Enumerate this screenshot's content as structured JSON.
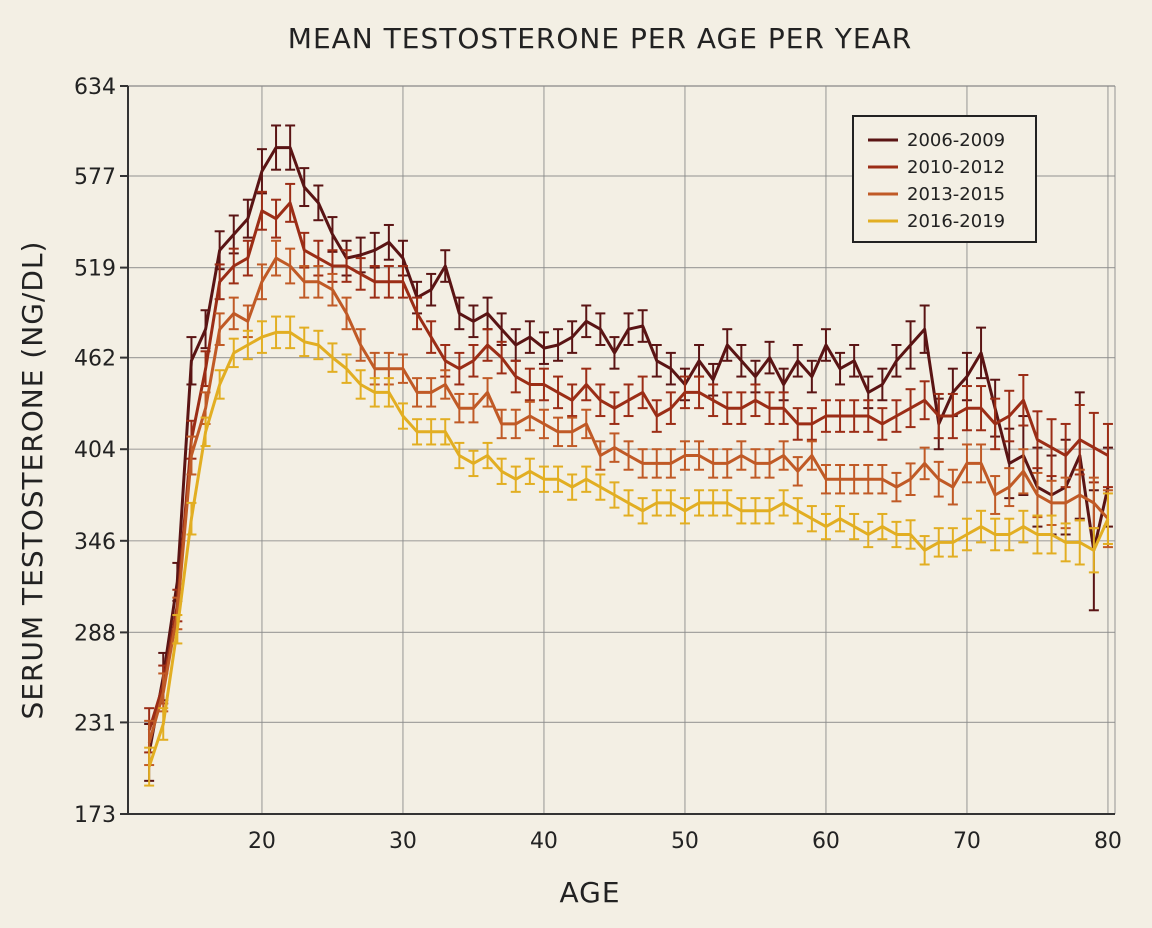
{
  "chart_data": {
    "type": "line",
    "title": "MEAN TESTOSTERONE PER AGE PER YEAR",
    "xlabel": "AGE",
    "ylabel": "SERUM TESTOSTERONE (NG/DL)",
    "xlim": [
      10.5,
      80.5
    ],
    "ylim": [
      173,
      634
    ],
    "x_ticks": [
      20,
      30,
      40,
      50,
      60,
      70,
      80
    ],
    "y_ticks": [
      173,
      231,
      288,
      346,
      404,
      462,
      519,
      577,
      634
    ],
    "grid": true,
    "legend": "top-right",
    "x": [
      12,
      13,
      14,
      15,
      16,
      17,
      18,
      19,
      20,
      21,
      22,
      23,
      24,
      25,
      26,
      27,
      28,
      29,
      30,
      31,
      32,
      33,
      34,
      35,
      36,
      37,
      38,
      39,
      40,
      41,
      42,
      43,
      44,
      45,
      46,
      47,
      48,
      49,
      50,
      51,
      52,
      53,
      54,
      55,
      56,
      57,
      58,
      59,
      60,
      61,
      62,
      63,
      64,
      65,
      66,
      67,
      68,
      69,
      70,
      71,
      72,
      73,
      74,
      75,
      76,
      77,
      78,
      79,
      80
    ],
    "series": [
      {
        "name": "2006-2009",
        "color": "#5a1414",
        "values": [
          212,
          260,
          320,
          460,
          480,
          530,
          540,
          550,
          580,
          595,
          595,
          570,
          560,
          540,
          525,
          527,
          530,
          535,
          525,
          500,
          505,
          520,
          490,
          485,
          490,
          480,
          470,
          475,
          468,
          470,
          475,
          485,
          480,
          465,
          480,
          482,
          460,
          455,
          445,
          460,
          448,
          470,
          460,
          450,
          462,
          445,
          460,
          450,
          470,
          455,
          460,
          440,
          445,
          460,
          470,
          480,
          420,
          440,
          450,
          465,
          430,
          395,
          400,
          380,
          375,
          380,
          400,
          340,
          380
        ],
        "errors": [
          18,
          15,
          12,
          15,
          12,
          12,
          12,
          12,
          14,
          14,
          14,
          12,
          11,
          11,
          11,
          11,
          11,
          11,
          11,
          10,
          10,
          10,
          10,
          10,
          10,
          10,
          10,
          10,
          10,
          10,
          10,
          10,
          10,
          10,
          10,
          10,
          10,
          10,
          10,
          10,
          10,
          10,
          10,
          10,
          10,
          10,
          10,
          10,
          10,
          10,
          10,
          10,
          10,
          10,
          15,
          15,
          16,
          15,
          15,
          16,
          18,
          22,
          25,
          25,
          25,
          30,
          40,
          38,
          25
        ]
      },
      {
        "name": "2010-2012",
        "color": "#9b2d16",
        "values": [
          226,
          255,
          305,
          410,
          455,
          510,
          520,
          525,
          555,
          550,
          560,
          530,
          525,
          520,
          520,
          515,
          510,
          510,
          510,
          490,
          475,
          460,
          455,
          460,
          470,
          462,
          450,
          445,
          445,
          440,
          435,
          445,
          435,
          430,
          435,
          440,
          425,
          430,
          440,
          440,
          435,
          430,
          430,
          435,
          430,
          430,
          420,
          420,
          425,
          425,
          425,
          425,
          420,
          425,
          430,
          435,
          425,
          425,
          430,
          430,
          420,
          425,
          435,
          410,
          405,
          400,
          410,
          405,
          400
        ],
        "errors": [
          14,
          12,
          10,
          12,
          11,
          11,
          11,
          11,
          12,
          12,
          12,
          11,
          11,
          10,
          10,
          10,
          10,
          10,
          10,
          10,
          10,
          10,
          10,
          10,
          10,
          10,
          10,
          10,
          10,
          10,
          10,
          10,
          10,
          10,
          10,
          10,
          10,
          10,
          10,
          10,
          10,
          10,
          10,
          10,
          10,
          10,
          10,
          10,
          10,
          10,
          10,
          10,
          10,
          10,
          12,
          12,
          14,
          14,
          14,
          14,
          16,
          16,
          16,
          18,
          18,
          20,
          22,
          22,
          20
        ]
      },
      {
        "name": "2013-2015",
        "color": "#c05a26",
        "values": [
          218,
          250,
          300,
          400,
          430,
          480,
          490,
          485,
          510,
          525,
          520,
          510,
          510,
          505,
          490,
          470,
          455,
          455,
          455,
          440,
          440,
          445,
          430,
          430,
          440,
          420,
          420,
          425,
          420,
          415,
          415,
          420,
          400,
          405,
          400,
          395,
          395,
          395,
          400,
          400,
          395,
          395,
          400,
          395,
          395,
          400,
          390,
          400,
          385,
          385,
          385,
          385,
          385,
          380,
          385,
          395,
          385,
          380,
          395,
          395,
          375,
          380,
          390,
          375,
          370,
          370,
          375,
          370,
          360
        ],
        "errors": [
          14,
          12,
          10,
          12,
          10,
          10,
          10,
          10,
          11,
          11,
          11,
          10,
          10,
          10,
          10,
          10,
          10,
          10,
          9,
          9,
          9,
          9,
          9,
          9,
          9,
          9,
          9,
          9,
          9,
          9,
          9,
          9,
          9,
          9,
          9,
          9,
          9,
          9,
          9,
          9,
          9,
          9,
          9,
          9,
          9,
          9,
          9,
          9,
          9,
          9,
          9,
          9,
          9,
          9,
          10,
          10,
          11,
          11,
          12,
          12,
          12,
          12,
          14,
          14,
          14,
          16,
          16,
          16,
          18
        ]
      },
      {
        "name": "2016-2019",
        "color": "#e2ae22",
        "values": [
          203,
          230,
          290,
          360,
          415,
          445,
          465,
          470,
          475,
          478,
          478,
          472,
          470,
          462,
          455,
          445,
          440,
          440,
          425,
          415,
          415,
          415,
          400,
          395,
          400,
          390,
          385,
          390,
          385,
          385,
          380,
          385,
          380,
          375,
          370,
          365,
          370,
          370,
          365,
          370,
          370,
          370,
          365,
          365,
          365,
          370,
          365,
          360,
          355,
          360,
          355,
          350,
          355,
          350,
          350,
          340,
          345,
          345,
          350,
          355,
          350,
          350,
          355,
          350,
          350,
          345,
          345,
          340,
          360
        ],
        "errors": [
          12,
          10,
          9,
          10,
          9,
          9,
          9,
          9,
          10,
          10,
          10,
          9,
          9,
          9,
          9,
          9,
          9,
          9,
          8,
          8,
          8,
          8,
          8,
          8,
          8,
          8,
          8,
          8,
          8,
          8,
          8,
          8,
          8,
          8,
          8,
          8,
          8,
          8,
          8,
          8,
          8,
          8,
          8,
          8,
          8,
          8,
          8,
          8,
          8,
          8,
          8,
          8,
          8,
          8,
          9,
          9,
          9,
          9,
          10,
          10,
          10,
          10,
          10,
          12,
          12,
          12,
          14,
          14,
          16
        ]
      }
    ]
  }
}
